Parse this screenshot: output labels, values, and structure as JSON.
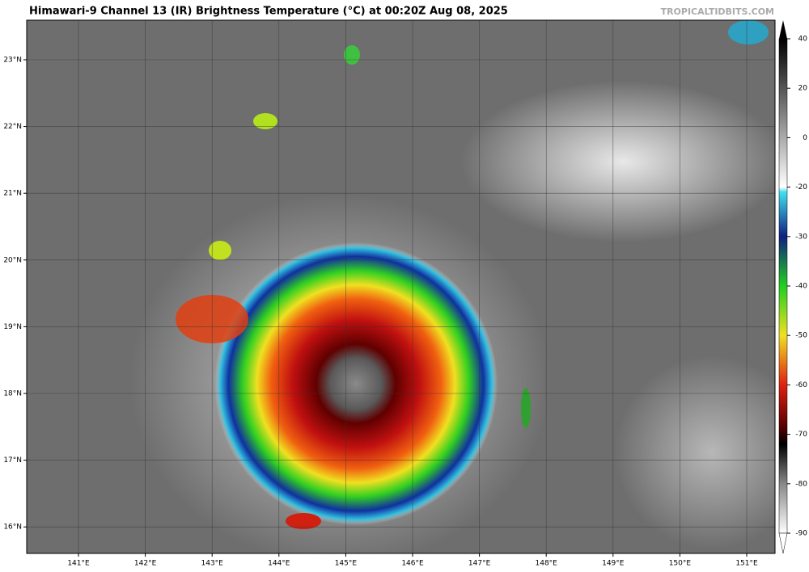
{
  "header": {
    "title": "Himawari-9 Channel 13 (IR) Brightness Temperature (°C) at 00:20Z Aug 08, 2025",
    "source": "TROPICALTIDBITS.COM"
  },
  "map": {
    "lat_labels": [
      "23°N",
      "22°N",
      "21°N",
      "20°N",
      "19°N",
      "18°N",
      "17°N",
      "16°N"
    ],
    "lon_labels": [
      "141°E",
      "142°E",
      "143°E",
      "144°E",
      "145°E",
      "146°E",
      "147°E",
      "148°E",
      "149°E",
      "150°E",
      "151°E"
    ]
  },
  "colorbar": {
    "ticks": [
      40,
      20,
      0,
      -20,
      -30,
      -40,
      -50,
      -60,
      -70,
      -80,
      -90
    ]
  }
}
